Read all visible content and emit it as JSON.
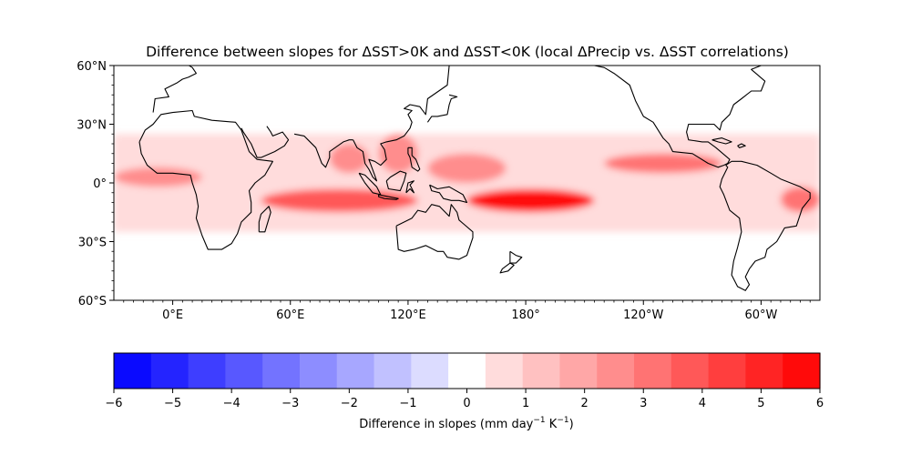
{
  "title": "Difference between slopes for ΔSST>0K and ΔSST<0K (local ΔPrecip vs. ΔSST correlations)",
  "map": {
    "projection": "PlateCarree",
    "lon_range": [
      -30,
      330
    ],
    "lat_range": [
      -60,
      60
    ],
    "lat_ticks": [
      {
        "lat": 60,
        "label": "60°N"
      },
      {
        "lat": 30,
        "label": "30°N"
      },
      {
        "lat": 0,
        "label": "0°"
      },
      {
        "lat": -30,
        "label": "30°S"
      },
      {
        "lat": -60,
        "label": "60°S"
      }
    ],
    "lon_ticks": [
      {
        "lon": 0,
        "label": "0°E"
      },
      {
        "lon": 60,
        "label": "60°E"
      },
      {
        "lon": 120,
        "label": "120°E"
      },
      {
        "lon": 180,
        "label": "180°"
      },
      {
        "lon": 240,
        "label": "120°W"
      },
      {
        "lon": 300,
        "label": "60°W"
      }
    ],
    "coastline_color": "#000000"
  },
  "field": {
    "description_levels": "filled contours of difference in slopes",
    "regions": [
      {
        "name": "tropical band",
        "lon": [
          -30,
          330
        ],
        "lat": [
          -25,
          25
        ],
        "value": 0.7
      },
      {
        "name": "atlantic itcz",
        "lon": [
          -30,
          15
        ],
        "lat": [
          -2,
          8
        ],
        "value": 2.3
      },
      {
        "name": "indian ocean south",
        "lon": [
          45,
          125
        ],
        "lat": [
          -15,
          -3
        ],
        "value": 3.6
      },
      {
        "name": "bay of bengal",
        "lon": [
          80,
          100
        ],
        "lat": [
          5,
          20
        ],
        "value": 2.6
      },
      {
        "name": "south china sea",
        "lon": [
          105,
          125
        ],
        "lat": [
          5,
          25
        ],
        "value": 2.8
      },
      {
        "name": "west pacific",
        "lon": [
          130,
          170
        ],
        "lat": [
          0,
          15
        ],
        "value": 2.6
      },
      {
        "name": "spcz",
        "lon": [
          150,
          215
        ],
        "lat": [
          -15,
          -3
        ],
        "value": 5.4
      },
      {
        "name": "east pacific itcz",
        "lon": [
          220,
          280
        ],
        "lat": [
          5,
          15
        ],
        "value": 3.2
      },
      {
        "name": "brazil coast",
        "lon": [
          310,
          330
        ],
        "lat": [
          -15,
          -2
        ],
        "value": 3.4
      }
    ]
  },
  "colorbar": {
    "levels": [
      -6,
      -5.5,
      -5,
      -4.5,
      -4,
      -3.5,
      -3,
      -2.5,
      -2,
      -1.5,
      -1,
      -0.5,
      0,
      0.5,
      1,
      1.5,
      2,
      2.5,
      3,
      3.5,
      4,
      4.5,
      5,
      5.5,
      6
    ],
    "colors": [
      "#0a0aff",
      "#2424ff",
      "#3e3eff",
      "#5858ff",
      "#7373ff",
      "#8d8dff",
      "#a7a7ff",
      "#c1c1ff",
      "#dcdcff",
      "#ffffff",
      "#ffdcdc",
      "#ffc1c1",
      "#ffa7a7",
      "#ff8d8d",
      "#ff7373",
      "#ff5858",
      "#ff3e3e",
      "#ff2424",
      "#ff0a0a"
    ],
    "tick_values": [
      -6,
      -5,
      -4,
      -3,
      -2,
      -1,
      0,
      1,
      2,
      3,
      4,
      5,
      6
    ],
    "tick_labels": [
      "−6",
      "−5",
      "−4",
      "−3",
      "−2",
      "−1",
      "0",
      "1",
      "2",
      "3",
      "4",
      "5",
      "6"
    ],
    "label_main": "Difference in slopes (mm day",
    "label_sup1": "−1",
    "label_mid": " K",
    "label_sup2": "−1",
    "label_end": ")"
  },
  "chart_data": {
    "type": "heatmap",
    "title": "Difference between slopes for ΔSST>0K and ΔSST<0K (local ΔPrecip vs. ΔSST correlations)",
    "xlabel": "",
    "ylabel": "",
    "colorbar_label": "Difference in slopes (mm day−1 K−1)",
    "value_range": [
      -6,
      6
    ],
    "xlim": [
      -30,
      330
    ],
    "ylim": [
      -60,
      60
    ]
  }
}
